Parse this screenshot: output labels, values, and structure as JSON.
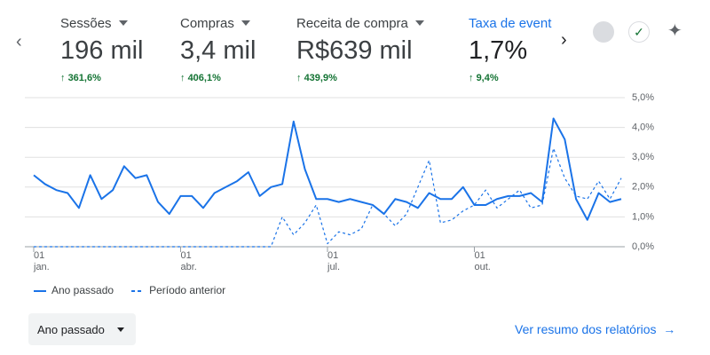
{
  "metrics": [
    {
      "name": "Sessões",
      "value": "196 mil",
      "change": "361,6%"
    },
    {
      "name": "Compras",
      "value": "3,4 mil",
      "change": "406,1%"
    },
    {
      "name": "Receita de compra",
      "value": "R$639 mil",
      "change": "439,9%"
    },
    {
      "name": "Taxa de evento",
      "value": "1,7%",
      "change": "9,4%"
    }
  ],
  "chart_data": {
    "type": "line",
    "categories": [
      "01\njan.",
      null,
      null,
      null,
      null,
      null,
      null,
      null,
      null,
      null,
      null,
      null,
      null,
      "01\nabr.",
      null,
      null,
      null,
      null,
      null,
      null,
      null,
      null,
      null,
      null,
      null,
      null,
      "01\njul.",
      null,
      null,
      null,
      null,
      null,
      null,
      null,
      null,
      null,
      null,
      null,
      null,
      "01\nout.",
      null,
      null,
      null,
      null,
      null,
      null,
      null,
      null,
      null,
      null,
      null,
      null,
      null
    ],
    "series": [
      {
        "name": "Ano passado",
        "color": "#1a73e8",
        "dashed": false,
        "values": [
          2.4,
          2.1,
          1.9,
          1.8,
          1.3,
          2.4,
          1.6,
          1.9,
          2.7,
          2.3,
          2.4,
          1.5,
          1.1,
          1.7,
          1.7,
          1.3,
          1.8,
          2.0,
          2.2,
          2.5,
          1.7,
          2.0,
          2.1,
          4.2,
          2.6,
          1.6,
          1.6,
          1.5,
          1.6,
          1.5,
          1.4,
          1.1,
          1.6,
          1.5,
          1.3,
          1.8,
          1.6,
          1.6,
          2.0,
          1.4,
          1.4,
          1.6,
          1.7,
          1.7,
          1.8,
          1.5,
          4.3,
          3.6,
          1.6,
          0.9,
          1.8,
          1.5,
          1.6
        ]
      },
      {
        "name": "Período anterior",
        "color": "#1a73e8",
        "dashed": true,
        "values": [
          0,
          0,
          0,
          0,
          0,
          0,
          0,
          0,
          0,
          0,
          0,
          0,
          0,
          0,
          0,
          0,
          0,
          0,
          0,
          0,
          0,
          0,
          1.0,
          0.4,
          0.8,
          1.4,
          0.1,
          0.5,
          0.4,
          0.6,
          1.4,
          1.1,
          0.7,
          1.1,
          2.0,
          2.9,
          0.8,
          0.9,
          1.2,
          1.4,
          1.9,
          1.3,
          1.6,
          1.9,
          1.3,
          1.4,
          3.3,
          2.3,
          1.7,
          1.6,
          2.2,
          1.6,
          2.3
        ]
      }
    ],
    "ylim": [
      0,
      5
    ],
    "yticks": [
      {
        "value": 0,
        "label": "0,0%"
      },
      {
        "value": 1,
        "label": "1,0%"
      },
      {
        "value": 2,
        "label": "2,0%"
      },
      {
        "value": 3,
        "label": "3,0%"
      },
      {
        "value": 4,
        "label": "4,0%"
      },
      {
        "value": 5,
        "label": "5,0%"
      }
    ],
    "grid": true
  },
  "controls": {
    "period": "Ano passado",
    "link": "Ver resumo dos relatórios"
  }
}
